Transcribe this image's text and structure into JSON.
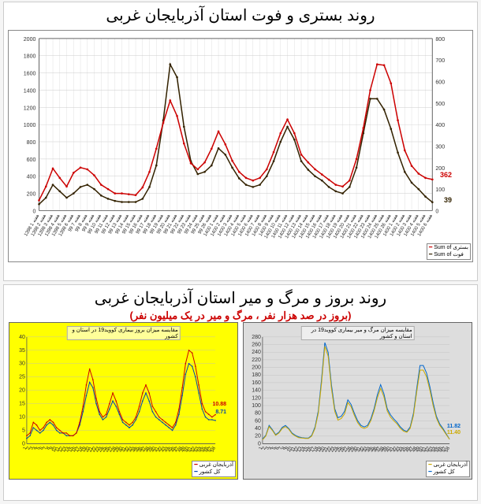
{
  "top_chart": {
    "title": "روند بستری و فوت استان آذربایجان غربی",
    "type": "line",
    "background_color": "#ffffff",
    "grid_color": "#cccccc",
    "y_left": {
      "min": 0,
      "max": 2000,
      "step": 200,
      "color": "#cc0000"
    },
    "y_right": {
      "min": 0,
      "max": 800,
      "step": 100,
      "color": "#332200"
    },
    "legend": {
      "items": [
        {
          "label": "بستری",
          "sum_label": "Sum of",
          "color": "#cc0000"
        },
        {
          "label": "فوت",
          "sum_label": "Sum of",
          "color": "#332200"
        }
      ]
    },
    "end_labels": [
      {
        "text": "362",
        "color": "#cc0000"
      },
      {
        "text": "39",
        "color": "#332200"
      }
    ],
    "x_label_prefix": "هفته",
    "x_start": "1398",
    "x_periods": [
      "98",
      "99",
      "1400"
    ],
    "series_red": {
      "color": "#cc0000",
      "values": [
        120,
        280,
        490,
        380,
        280,
        440,
        500,
        480,
        410,
        300,
        250,
        200,
        200,
        190,
        180,
        270,
        450,
        720,
        1020,
        1280,
        1100,
        780,
        550,
        480,
        560,
        720,
        920,
        770,
        580,
        450,
        380,
        350,
        380,
        480,
        680,
        900,
        1060,
        900,
        650,
        560,
        480,
        420,
        360,
        300,
        280,
        350,
        600,
        960,
        1400,
        1700,
        1690,
        1480,
        1050,
        700,
        520,
        430,
        380,
        362
      ],
      "marker": "circle",
      "line_width": 1.5
    },
    "series_black": {
      "color": "#332200",
      "values": [
        30,
        60,
        120,
        90,
        60,
        80,
        110,
        120,
        100,
        70,
        55,
        45,
        40,
        40,
        40,
        55,
        110,
        210,
        420,
        680,
        620,
        390,
        230,
        170,
        180,
        210,
        290,
        260,
        200,
        150,
        120,
        110,
        120,
        160,
        230,
        320,
        390,
        330,
        230,
        190,
        160,
        140,
        110,
        90,
        80,
        110,
        200,
        360,
        520,
        520,
        470,
        380,
        270,
        180,
        130,
        100,
        65,
        39
      ],
      "marker": "circle",
      "line_width": 1.5
    }
  },
  "bottom_section": {
    "title": "روند بروز و مرگ و میر استان آذربایجان غربی",
    "subtitle": "(بروز در صد هزار نفر ، مرگ و میر در یک میلیون نفر)",
    "subtitle_color": "#cc0000"
  },
  "bottom_left": {
    "background_color": "#ffff00",
    "title": "مقایسه میزان بروز بیماری کووید19 در استان و کشور",
    "y": {
      "min": 0,
      "max": 40,
      "step": 5
    },
    "end_labels": [
      {
        "text": "10.88",
        "color": "#cc0000"
      },
      {
        "text": "8.71",
        "color": "#0044aa"
      }
    ],
    "legend": [
      {
        "label": "آذربایجان غربی",
        "color": "#cc0000"
      },
      {
        "label": "کل کشور",
        "color": "#0044aa"
      }
    ],
    "series_red": {
      "color": "#cc0000",
      "values": [
        3,
        4,
        8,
        7,
        5,
        6,
        8,
        9,
        8,
        6,
        5,
        4,
        4,
        3,
        3,
        4,
        8,
        14,
        22,
        28,
        24,
        17,
        12,
        10,
        11,
        15,
        19,
        16,
        12,
        9,
        8,
        7,
        8,
        10,
        14,
        19,
        22,
        19,
        14,
        12,
        10,
        9,
        8,
        7,
        6,
        8,
        13,
        21,
        30,
        35,
        34,
        29,
        22,
        15,
        12,
        11,
        10,
        10.88
      ]
    },
    "series_blue": {
      "color": "#0044aa",
      "values": [
        2,
        3,
        6,
        5,
        4,
        5,
        7,
        8,
        7,
        5,
        4,
        4,
        3,
        3,
        3,
        4,
        7,
        12,
        18,
        23,
        21,
        15,
        11,
        9,
        10,
        13,
        16,
        14,
        11,
        8,
        7,
        6,
        7,
        9,
        12,
        16,
        19,
        16,
        12,
        10,
        9,
        8,
        7,
        6,
        5,
        7,
        11,
        18,
        26,
        30,
        29,
        25,
        19,
        13,
        10,
        9,
        9,
        8.71
      ]
    }
  },
  "bottom_right": {
    "background_color": "#dddddd",
    "title": "مقایسه میزان مرگ و میر بیماری کووید19 در استان و کشور",
    "y": {
      "min": 0,
      "max": 280,
      "step": 20
    },
    "end_labels": [
      {
        "text": "11.82",
        "color": "#0066cc"
      },
      {
        "text": "11.40",
        "color": "#ccaa00"
      }
    ],
    "legend": [
      {
        "label": "آذربایجان غربی",
        "color": "#ccaa00"
      },
      {
        "label": "کل کشور",
        "color": "#0066cc"
      }
    ],
    "series_yellow": {
      "color": "#ccaa00",
      "values": [
        10,
        20,
        45,
        35,
        22,
        28,
        40,
        45,
        38,
        26,
        20,
        16,
        15,
        14,
        14,
        20,
        40,
        80,
        160,
        255,
        230,
        145,
        85,
        62,
        66,
        78,
        108,
        97,
        74,
        55,
        44,
        40,
        44,
        60,
        86,
        120,
        145,
        123,
        86,
        70,
        60,
        52,
        40,
        33,
        30,
        40,
        74,
        135,
        193,
        193,
        175,
        141,
        100,
        67,
        48,
        37,
        24,
        11.4
      ]
    },
    "series_blue": {
      "color": "#0066cc",
      "values": [
        12,
        22,
        48,
        37,
        24,
        30,
        43,
        48,
        40,
        28,
        22,
        18,
        16,
        15,
        15,
        22,
        44,
        86,
        170,
        265,
        240,
        155,
        92,
        68,
        72,
        85,
        115,
        103,
        80,
        60,
        48,
        44,
        48,
        65,
        92,
        128,
        155,
        131,
        92,
        76,
        65,
        56,
        44,
        36,
        32,
        44,
        80,
        144,
        205,
        205,
        185,
        150,
        108,
        72,
        52,
        40,
        26,
        11.82
      ]
    }
  }
}
